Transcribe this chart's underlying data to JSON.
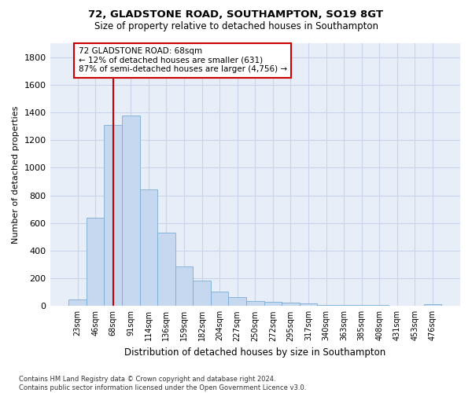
{
  "title1": "72, GLADSTONE ROAD, SOUTHAMPTON, SO19 8GT",
  "title2": "Size of property relative to detached houses in Southampton",
  "xlabel": "Distribution of detached houses by size in Southampton",
  "ylabel": "Number of detached properties",
  "categories": [
    "23sqm",
    "46sqm",
    "68sqm",
    "91sqm",
    "114sqm",
    "136sqm",
    "159sqm",
    "182sqm",
    "204sqm",
    "227sqm",
    "250sqm",
    "272sqm",
    "295sqm",
    "317sqm",
    "340sqm",
    "363sqm",
    "385sqm",
    "408sqm",
    "431sqm",
    "453sqm",
    "476sqm"
  ],
  "values": [
    50,
    640,
    1310,
    1375,
    845,
    530,
    285,
    185,
    105,
    65,
    35,
    30,
    25,
    20,
    10,
    5,
    5,
    5,
    0,
    0,
    15
  ],
  "bar_color": "#c5d8ef",
  "bar_edgecolor": "#7aadd4",
  "vline_x": 2,
  "vline_color": "#cc0000",
  "annotation_text": "72 GLADSTONE ROAD: 68sqm\n← 12% of detached houses are smaller (631)\n87% of semi-detached houses are larger (4,756) →",
  "annotation_box_color": "#cc0000",
  "annotation_bg": "#ffffff",
  "ylim": [
    0,
    1900
  ],
  "yticks": [
    0,
    200,
    400,
    600,
    800,
    1000,
    1200,
    1400,
    1600,
    1800
  ],
  "grid_color": "#c8d4e8",
  "footnote": "Contains HM Land Registry data © Crown copyright and database right 2024.\nContains public sector information licensed under the Open Government Licence v3.0.",
  "bg_color": "#e8eef8",
  "fig_width": 6.0,
  "fig_height": 5.0
}
